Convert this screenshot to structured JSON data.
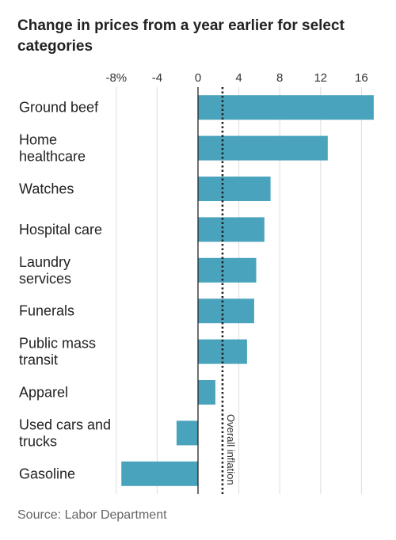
{
  "chart_data": {
    "type": "bar",
    "orientation": "horizontal",
    "title": "Change in prices from a year earlier for select categories",
    "categories": [
      [
        "Ground beef"
      ],
      [
        "Home",
        "healthcare"
      ],
      [
        "Watches"
      ],
      [
        "Hospital care"
      ],
      [
        "Laundry",
        "services"
      ],
      [
        "Funerals"
      ],
      [
        "Public mass",
        "transit"
      ],
      [
        "Apparel"
      ],
      [
        "Used cars and",
        "trucks"
      ],
      [
        "Gasoline"
      ]
    ],
    "values": [
      17.2,
      12.7,
      7.1,
      6.5,
      5.7,
      5.5,
      4.8,
      1.7,
      -2.1,
      -7.5
    ],
    "x_ticks": [
      -8,
      -4,
      0,
      4,
      8,
      12,
      16
    ],
    "x_tick_labels": [
      "-8%",
      "-4",
      "0",
      "4",
      "8",
      "12",
      "16"
    ],
    "xlim": [
      -9.5,
      17.5
    ],
    "reference_line": {
      "value": 2.4,
      "label": "Overall inflation"
    },
    "grid": "vertical",
    "bar_color": "#4aa3bc"
  },
  "source": "Source: Labor Department"
}
